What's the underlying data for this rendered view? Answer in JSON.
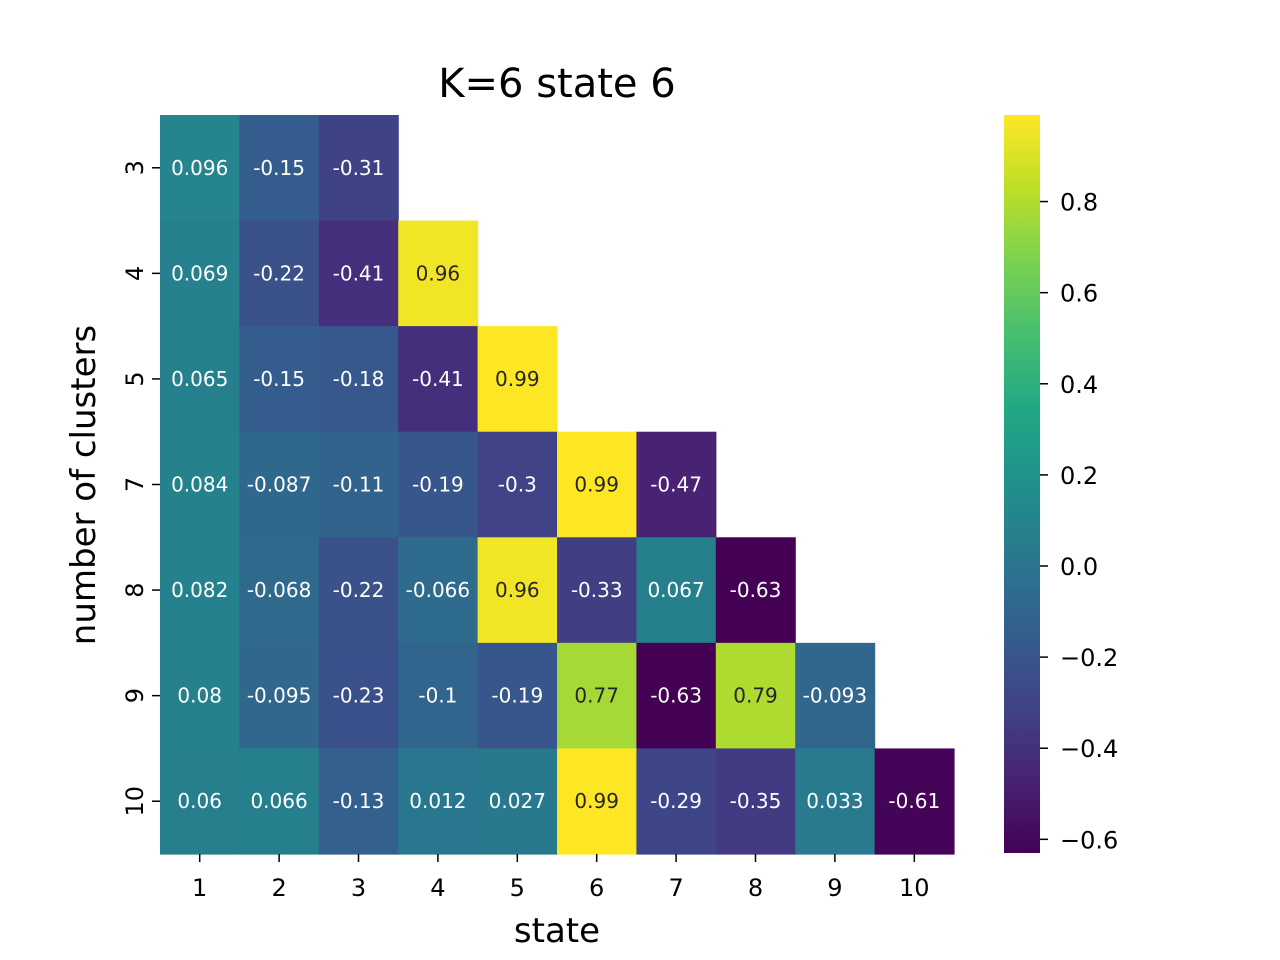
{
  "chart_data": {
    "type": "heatmap",
    "title": "K=6 state 6",
    "xlabel": "state",
    "ylabel": "number of clusters",
    "x_ticks": [
      "1",
      "2",
      "3",
      "4",
      "5",
      "6",
      "7",
      "8",
      "9",
      "10"
    ],
    "y_ticks": [
      "3",
      "4",
      "5",
      "7",
      "8",
      "9",
      "10"
    ],
    "values": [
      [
        0.096,
        -0.15,
        -0.31,
        null,
        null,
        null,
        null,
        null,
        null,
        null
      ],
      [
        0.069,
        -0.22,
        -0.41,
        0.96,
        null,
        null,
        null,
        null,
        null,
        null
      ],
      [
        0.065,
        -0.15,
        -0.18,
        -0.41,
        0.99,
        null,
        null,
        null,
        null,
        null
      ],
      [
        0.084,
        -0.087,
        -0.11,
        -0.19,
        -0.3,
        0.99,
        -0.47,
        null,
        null,
        null
      ],
      [
        0.082,
        -0.068,
        -0.22,
        -0.066,
        0.96,
        -0.33,
        0.067,
        -0.63,
        null,
        null
      ],
      [
        0.08,
        -0.095,
        -0.23,
        -0.1,
        -0.19,
        0.77,
        -0.63,
        0.79,
        -0.093,
        null
      ],
      [
        0.06,
        0.066,
        -0.13,
        0.012,
        0.027,
        0.99,
        -0.29,
        -0.35,
        0.033,
        -0.61
      ]
    ],
    "colormap": "viridis",
    "color_range": [
      -0.63,
      0.99
    ],
    "colorbar_ticks": [
      "0.8",
      "0.6",
      "0.4",
      "0.2",
      "0.0",
      "−0.2",
      "−0.4",
      "−0.6"
    ],
    "colorbar_tick_values": [
      0.8,
      0.6,
      0.4,
      0.2,
      0.0,
      -0.2,
      -0.4,
      -0.6
    ]
  }
}
